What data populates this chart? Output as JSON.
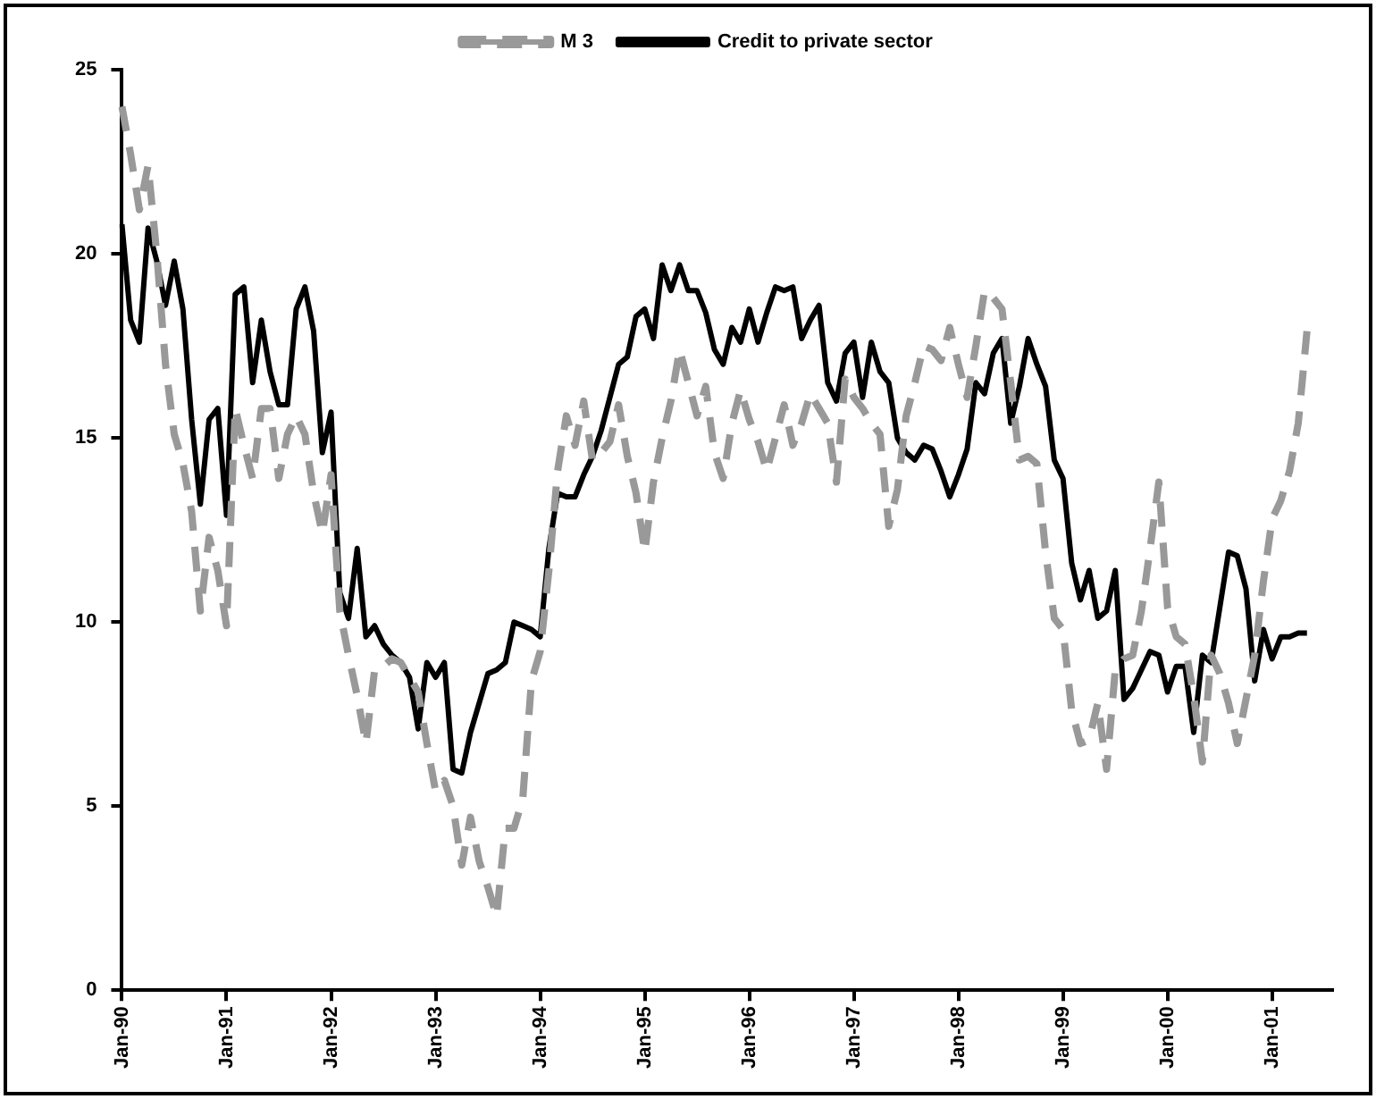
{
  "chart_data": {
    "type": "line",
    "categories": [
      "Jan-90",
      null,
      null,
      null,
      null,
      null,
      null,
      null,
      null,
      null,
      null,
      null,
      "Jan-91",
      null,
      null,
      null,
      null,
      null,
      null,
      null,
      null,
      null,
      null,
      null,
      "Jan-92",
      null,
      null,
      null,
      null,
      null,
      null,
      null,
      null,
      null,
      null,
      null,
      "Jan-93",
      null,
      null,
      null,
      null,
      null,
      null,
      null,
      null,
      null,
      null,
      null,
      "Jan-94",
      null,
      null,
      null,
      null,
      null,
      null,
      null,
      null,
      null,
      null,
      null,
      "Jan-95",
      null,
      null,
      null,
      null,
      null,
      null,
      null,
      null,
      null,
      null,
      null,
      "Jan-96",
      null,
      null,
      null,
      null,
      null,
      null,
      null,
      null,
      null,
      null,
      null,
      "Jan-97",
      null,
      null,
      null,
      null,
      null,
      null,
      null,
      null,
      null,
      null,
      null,
      "Jan-98",
      null,
      null,
      null,
      null,
      null,
      null,
      null,
      null,
      null,
      null,
      null,
      "Jan-99",
      null,
      null,
      null,
      null,
      null,
      null,
      null,
      null,
      null,
      null,
      null,
      "Jan-00",
      null,
      null,
      null,
      null,
      null,
      null,
      null,
      null,
      null,
      null,
      null,
      "Jan-01",
      null,
      null,
      null,
      null,
      null,
      null,
      null
    ],
    "series": [
      {
        "name": "M 3",
        "color": "#999999",
        "line_style": "dashed",
        "values": [
          24.0,
          22.7,
          21.2,
          22.4,
          20.0,
          17.0,
          15.1,
          14.3,
          13.0,
          10.3,
          12.3,
          11.4,
          9.9,
          15.8,
          14.8,
          13.9,
          15.8,
          15.8,
          13.9,
          15.1,
          15.6,
          15.1,
          13.5,
          12.4,
          14.0,
          10.3,
          9.1,
          8.0,
          6.7,
          8.7,
          8.8,
          9.0,
          8.9,
          8.5,
          8.1,
          6.7,
          5.4,
          5.7,
          5.0,
          3.4,
          4.7,
          3.5,
          2.8,
          2.0,
          4.4,
          4.4,
          5.2,
          8.4,
          9.2,
          11.4,
          14.1,
          15.6,
          14.8,
          16.0,
          14.4,
          14.6,
          14.9,
          15.9,
          14.5,
          13.5,
          11.9,
          13.8,
          15.0,
          16.0,
          17.4,
          16.5,
          15.6,
          16.4,
          14.6,
          13.9,
          15.4,
          16.3,
          15.5,
          14.9,
          14.1,
          15.0,
          15.9,
          14.8,
          15.4,
          16.2,
          15.8,
          15.4,
          13.8,
          16.6,
          16.1,
          15.8,
          15.4,
          15.1,
          12.6,
          13.6,
          15.6,
          16.5,
          17.5,
          17.4,
          17.1,
          18.0,
          17.0,
          16.1,
          17.5,
          19.0,
          18.8,
          18.5,
          16.5,
          14.4,
          14.5,
          14.3,
          11.9,
          10.1,
          9.8,
          7.6,
          6.7,
          6.8,
          7.8,
          6.0,
          8.7,
          9.0,
          9.1,
          10.3,
          12.0,
          13.8,
          10.4,
          9.6,
          9.4,
          8.0,
          6.2,
          9.1,
          8.6,
          7.8,
          6.7,
          7.9,
          9.1,
          11.1,
          12.8,
          13.3,
          14.1,
          15.4,
          17.9,
          null,
          null,
          null
        ]
      },
      {
        "name": "Credit to private sector",
        "color": "#000000",
        "line_style": "solid",
        "values": [
          20.8,
          18.2,
          17.6,
          20.7,
          19.8,
          18.6,
          19.8,
          18.5,
          15.5,
          13.2,
          15.5,
          15.8,
          12.9,
          18.9,
          19.1,
          16.5,
          18.2,
          16.8,
          15.9,
          15.9,
          18.5,
          19.1,
          17.9,
          14.6,
          15.7,
          10.8,
          10.1,
          12.0,
          9.6,
          9.9,
          9.4,
          9.1,
          8.9,
          8.5,
          7.1,
          8.9,
          8.5,
          8.9,
          6.0,
          5.9,
          7.0,
          7.8,
          8.6,
          8.7,
          8.9,
          10.0,
          9.9,
          9.8,
          9.6,
          12.0,
          13.5,
          13.4,
          13.4,
          14.0,
          14.5,
          15.2,
          16.1,
          17.0,
          17.2,
          18.3,
          18.5,
          17.7,
          19.7,
          19.0,
          19.7,
          19.0,
          19.0,
          18.4,
          17.4,
          17.0,
          18.0,
          17.6,
          18.5,
          17.6,
          18.4,
          19.1,
          19.0,
          19.1,
          17.7,
          18.2,
          18.6,
          16.5,
          16.0,
          17.3,
          17.6,
          16.1,
          17.6,
          16.8,
          16.5,
          15.0,
          14.6,
          14.4,
          14.8,
          14.7,
          14.1,
          13.4,
          14.0,
          14.7,
          16.5,
          16.2,
          17.3,
          17.7,
          15.4,
          16.4,
          17.7,
          17.0,
          16.4,
          14.4,
          13.9,
          11.6,
          10.6,
          11.4,
          10.1,
          10.3,
          11.4,
          7.9,
          8.2,
          8.7,
          9.2,
          9.1,
          8.1,
          8.8,
          8.8,
          7.0,
          9.1,
          8.9,
          10.4,
          11.9,
          11.8,
          10.9,
          8.4,
          9.8,
          9.0,
          9.6,
          9.6,
          9.7,
          9.7,
          null,
          null,
          null
        ]
      }
    ],
    "ylim": [
      0,
      25
    ],
    "yticks": [
      0,
      5,
      10,
      15,
      20,
      25
    ],
    "legend": "top"
  }
}
